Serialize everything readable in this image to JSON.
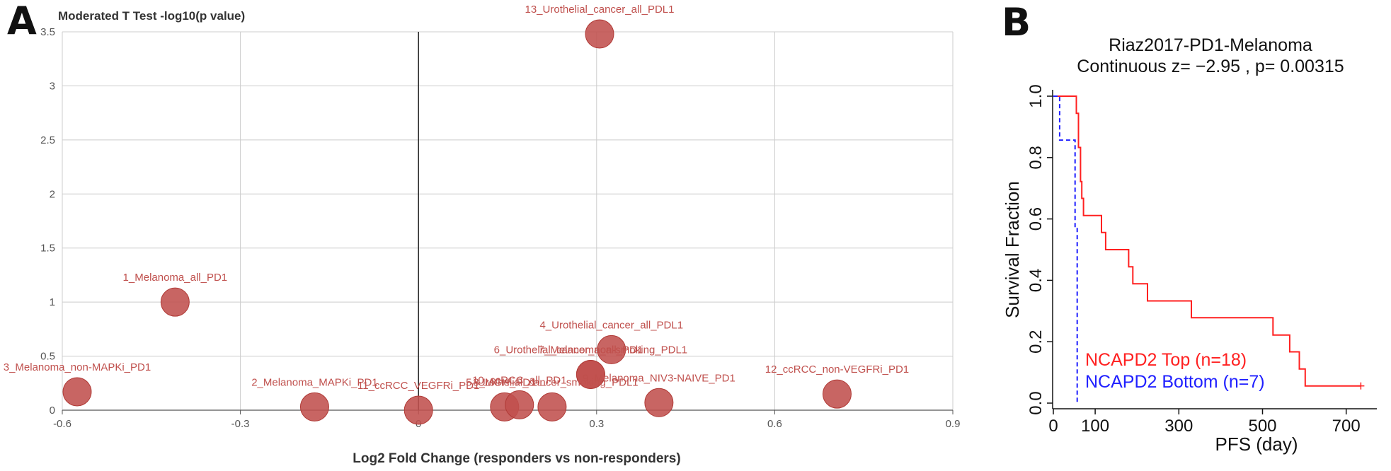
{
  "panel_a": {
    "letter": "A",
    "ylabel": "Moderated T Test -log10(p value)",
    "xlabel": "Log2 Fold Change (responders vs non-responders)",
    "x_ticks": [
      "-0.6",
      "-0.3",
      "0",
      "0.3",
      "0.6",
      "0.9"
    ],
    "y_ticks": [
      "0",
      "0.5",
      "1",
      "1.5",
      "2",
      "2.5",
      "3",
      "3.5"
    ]
  },
  "panel_b": {
    "letter": "B",
    "title_line1": "Riaz2017-PD1-Melanoma",
    "title_line2": "Continuous z= −2.95 , p= 0.00315",
    "ylabel": "Survival Fraction",
    "xlabel": "PFS (day)",
    "x_ticks": [
      "0",
      "100",
      "300",
      "500",
      "700"
    ],
    "y_ticks": [
      "0.0",
      "0.2",
      "0.4",
      "0.6",
      "0.8",
      "1.0"
    ],
    "legend_top": "NCAPD2 Top (n=18)",
    "legend_bottom": "NCAPD2 Bottom (n=7)"
  },
  "chart_data": [
    {
      "type": "scatter",
      "title": "",
      "xlabel": "Log2 Fold Change (responders vs non-responders)",
      "ylabel": "Moderated T Test -log10(p value)",
      "xlim": [
        -0.6,
        0.9
      ],
      "ylim": [
        0,
        3.5
      ],
      "grid": true,
      "marker_color": "#c0504d",
      "points": [
        {
          "label": "1_Melanoma_all_PD1",
          "x": -0.41,
          "y": 1.0
        },
        {
          "label": "2_Melanoma_MAPKi_PD1",
          "x": -0.175,
          "y": 0.03
        },
        {
          "label": "3_Melanoma_non-MAPKi_PD1",
          "x": -0.575,
          "y": 0.17
        },
        {
          "label": "4_Urothelial_cancer_all_PDL1",
          "x": 0.325,
          "y": 0.56
        },
        {
          "label": "5_Urothelial_cancer_smoking_PDL1",
          "x": 0.225,
          "y": 0.03
        },
        {
          "label": "6_Urothelial_cancer_non-smoking_PDL1",
          "x": 0.29,
          "y": 0.33
        },
        {
          "label": "7_Melanoma_all_PD1",
          "x": 0.29,
          "y": 0.33
        },
        {
          "label": "8_MGH_PD1",
          "x": 0.145,
          "y": 0.03
        },
        {
          "label": "9_Melanoma_NIV3-NAIVE_PD1",
          "x": 0.405,
          "y": 0.07
        },
        {
          "label": "10_ccRCC_all_PD1",
          "x": 0.17,
          "y": 0.05
        },
        {
          "label": "11_ccRCC_VEGFRi_PD1",
          "x": 0.0,
          "y": 0.0
        },
        {
          "label": "12_ccRCC_non-VEGFRi_PD1",
          "x": 0.705,
          "y": 0.15
        },
        {
          "label": "13_Urothelial_cancer_all_PDL1",
          "x": 0.305,
          "y": 3.48
        }
      ]
    },
    {
      "type": "line",
      "title": "Riaz2017-PD1-Melanoma",
      "subtitle": "Continuous z= −2.95 , p= 0.00315",
      "xlabel": "PFS (day)",
      "ylabel": "Survival Fraction",
      "xlim": [
        0,
        750
      ],
      "ylim": [
        0,
        1.0
      ],
      "x_ticks": [
        0,
        100,
        300,
        500,
        700
      ],
      "y_ticks": [
        0.0,
        0.2,
        0.4,
        0.6,
        0.8,
        1.0
      ],
      "legend_position": "bottom-left",
      "series": [
        {
          "name": "NCAPD2 Top (n=18)",
          "color": "#ff2020",
          "style": "solid",
          "steps": [
            [
              0,
              1.0
            ],
            [
              55,
              1.0
            ],
            [
              55,
              0.944
            ],
            [
              60,
              0.944
            ],
            [
              60,
              0.833
            ],
            [
              65,
              0.833
            ],
            [
              65,
              0.722
            ],
            [
              68,
              0.722
            ],
            [
              68,
              0.667
            ],
            [
              72,
              0.667
            ],
            [
              72,
              0.611
            ],
            [
              115,
              0.611
            ],
            [
              115,
              0.556
            ],
            [
              125,
              0.556
            ],
            [
              125,
              0.5
            ],
            [
              180,
              0.5
            ],
            [
              180,
              0.444
            ],
            [
              190,
              0.444
            ],
            [
              190,
              0.389
            ],
            [
              225,
              0.389
            ],
            [
              225,
              0.333
            ],
            [
              330,
              0.333
            ],
            [
              330,
              0.278
            ],
            [
              525,
              0.278
            ],
            [
              525,
              0.222
            ],
            [
              565,
              0.222
            ],
            [
              565,
              0.167
            ],
            [
              588,
              0.167
            ],
            [
              588,
              0.111
            ],
            [
              602,
              0.111
            ],
            [
              602,
              0.056
            ],
            [
              735,
              0.056
            ]
          ]
        },
        {
          "name": "NCAPD2 Bottom (n=7)",
          "color": "#2020ff",
          "style": "dashed",
          "steps": [
            [
              0,
              1.0
            ],
            [
              15,
              1.0
            ],
            [
              15,
              0.857
            ],
            [
              52,
              0.857
            ],
            [
              52,
              0.571
            ],
            [
              57,
              0.571
            ],
            [
              57,
              0.0
            ],
            [
              60,
              0.0
            ]
          ]
        }
      ]
    }
  ]
}
